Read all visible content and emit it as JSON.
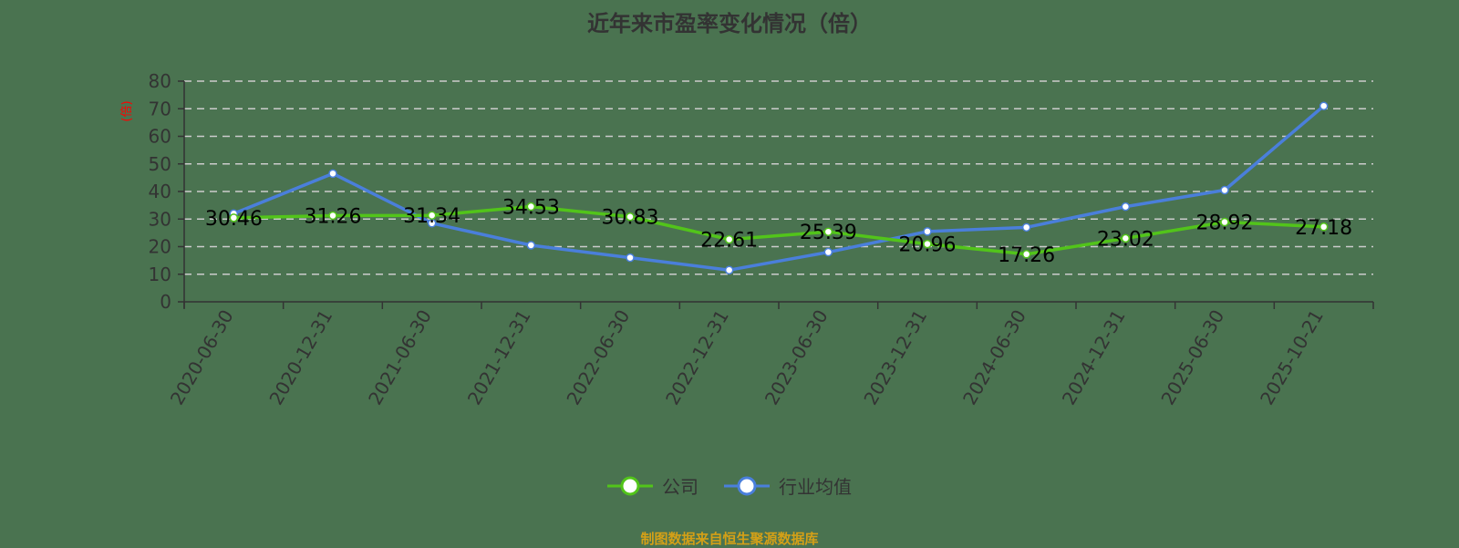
{
  "title": "近年来市盈率变化情况（倍）",
  "y_axis_unit_label": "(倍)",
  "legend": [
    {
      "label": "公司",
      "color": "#52c41a"
    },
    {
      "label": "行业均值",
      "color": "#4a7fdb"
    }
  ],
  "source": "制图数据来自恒生聚源数据库",
  "colors": {
    "background": "#4a7350",
    "company": "#52c41a",
    "industry": "#4a7fdb",
    "axis": "#333333",
    "grid": "#cccccc",
    "y_unit_label": "#ff0000",
    "source": "#d4a017"
  },
  "chart_data": {
    "type": "line",
    "title": "近年来市盈率变化情况（倍）",
    "xlabel": "",
    "ylabel": "(倍)",
    "ylim": [
      0,
      80
    ],
    "yticks": [
      0,
      10,
      20,
      30,
      40,
      50,
      60,
      70,
      80
    ],
    "grid": true,
    "legend_position": "bottom",
    "categories": [
      "2020-06-30",
      "2020-12-31",
      "2021-06-30",
      "2021-12-31",
      "2022-06-30",
      "2022-12-31",
      "2023-06-30",
      "2023-12-31",
      "2024-06-30",
      "2024-12-31",
      "2025-06-30",
      "2025-10-21"
    ],
    "series": [
      {
        "name": "公司",
        "values": [
          30.46,
          31.26,
          31.34,
          34.53,
          30.83,
          22.61,
          25.39,
          20.96,
          17.26,
          23.02,
          28.92,
          27.18
        ],
        "labels_shown": true
      },
      {
        "name": "行业均值",
        "values": [
          32,
          46.5,
          28.5,
          20.5,
          16,
          11.5,
          18,
          25.5,
          27,
          34.5,
          40.5,
          71
        ],
        "labels_shown": false
      }
    ]
  }
}
